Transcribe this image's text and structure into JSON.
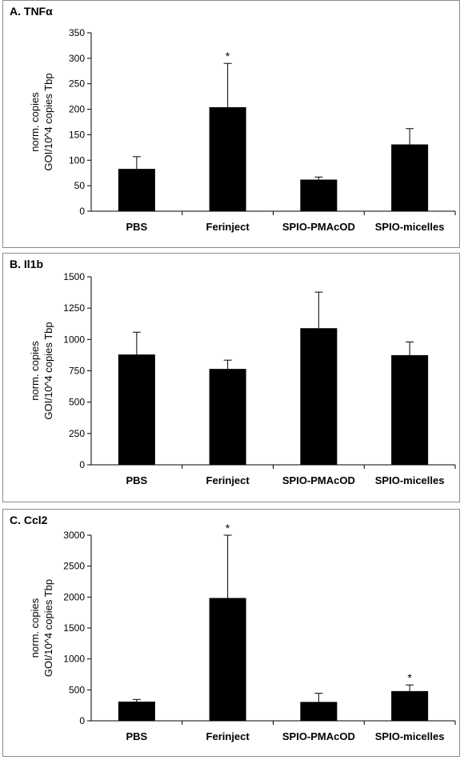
{
  "chart_data": [
    {
      "type": "bar",
      "title": "A. TNFα",
      "ylabel_lines": [
        "norm. copies",
        "GOI/10^4 copies Tbp"
      ],
      "categories": [
        "PBS",
        "Ferinject",
        "SPIO-PMAcOD",
        "SPIO-micelles"
      ],
      "values": [
        83,
        204,
        62,
        131
      ],
      "error_upper": [
        107,
        290,
        67,
        162
      ],
      "significance": [
        "",
        "*",
        "",
        ""
      ],
      "ylim": [
        0,
        350
      ],
      "yticks": [
        0,
        50,
        100,
        150,
        200,
        250,
        300,
        350
      ],
      "ytick_labels": [
        "0",
        "50",
        "100",
        "150",
        "200",
        "250",
        "300",
        "350"
      ],
      "grid": false,
      "bar_color": "#000000"
    },
    {
      "type": "bar",
      "title": "B. Il1b",
      "ylabel_lines": [
        "norm. copies",
        "GOI/10^4 copies Tbp"
      ],
      "categories": [
        "PBS",
        "Ferinject",
        "SPIO-PMAcOD",
        "SPIO-micelles"
      ],
      "values": [
        880,
        765,
        1090,
        875
      ],
      "error_upper": [
        1058,
        835,
        1378,
        980
      ],
      "significance": [
        "",
        "",
        "",
        ""
      ],
      "ylim": [
        0,
        1500
      ],
      "yticks": [
        0,
        250,
        500,
        750,
        1000,
        1250,
        1500
      ],
      "ytick_labels": [
        "0",
        "250",
        "500",
        "750",
        "1000",
        "1250",
        "1500"
      ],
      "grid": false,
      "bar_color": "#000000"
    },
    {
      "type": "bar",
      "title": "C. Ccl2",
      "ylabel_lines": [
        "norm. copies",
        "GOI/10^4 copies Tbp"
      ],
      "categories": [
        "PBS",
        "Ferinject",
        "SPIO-PMAcOD",
        "SPIO-micelles"
      ],
      "values": [
        310,
        1985,
        305,
        480
      ],
      "error_upper": [
        345,
        3000,
        445,
        580
      ],
      "significance": [
        "",
        "*",
        "",
        "*"
      ],
      "ylim": [
        0,
        3000
      ],
      "yticks": [
        0,
        500,
        1000,
        1500,
        2000,
        2500,
        3000
      ],
      "ytick_labels": [
        "0",
        "500",
        "1000",
        "1500",
        "2000",
        "2500",
        "3000"
      ],
      "grid": false,
      "bar_color": "#000000"
    }
  ]
}
